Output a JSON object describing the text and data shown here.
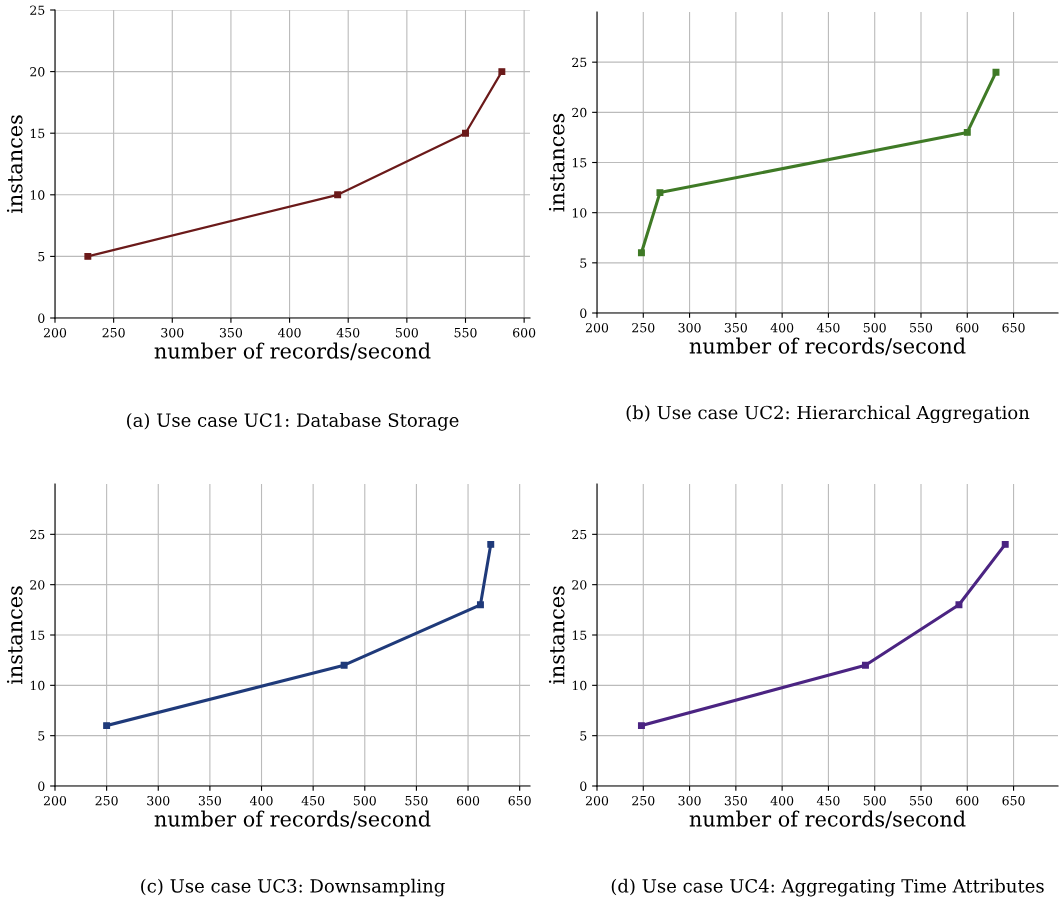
{
  "chart_data": [
    {
      "type": "line",
      "title": "(a) Use case UC1: Database Storage",
      "xlabel": "number of records/second",
      "ylabel": "instances",
      "x": [
        228,
        441,
        550,
        581
      ],
      "series": [
        {
          "color": "#6b1a1a",
          "values": [
            5,
            10,
            15,
            20
          ]
        }
      ],
      "xlim": [
        200,
        605
      ],
      "xticks": [
        200,
        250,
        300,
        350,
        400,
        450,
        500,
        550,
        600
      ],
      "ylim": [
        0,
        25
      ],
      "yticks": [
        0,
        5,
        10,
        15,
        20,
        25
      ],
      "grid": true,
      "marker": "square",
      "line_style": "solid",
      "legend": false
    },
    {
      "type": "line",
      "title": "(b) Use case UC2: Hierarchical Aggregation",
      "xlabel": "number of records/second",
      "ylabel": "instances",
      "x": [
        248,
        268,
        600,
        631
      ],
      "series": [
        {
          "color": "#3f7a26",
          "values": [
            6,
            12,
            18,
            24
          ]
        }
      ],
      "xlim": [
        200,
        698
      ],
      "xticks": [
        200,
        250,
        300,
        350,
        400,
        450,
        500,
        550,
        600,
        650
      ],
      "ylim": [
        0,
        30
      ],
      "yticks": [
        0,
        5,
        10,
        15,
        20,
        25
      ],
      "grid": true,
      "marker": "square",
      "line_style": "solid",
      "legend": false
    },
    {
      "type": "line",
      "title": "(c) Use case UC3: Downsampling",
      "xlabel": "number of records/second",
      "ylabel": "instances",
      "x": [
        250,
        480,
        612,
        622
      ],
      "series": [
        {
          "color": "#1f3a7a",
          "values": [
            6,
            12,
            18,
            24
          ]
        }
      ],
      "xlim": [
        200,
        660
      ],
      "xticks": [
        200,
        250,
        300,
        350,
        400,
        450,
        500,
        550,
        600,
        650
      ],
      "ylim": [
        0,
        30
      ],
      "yticks": [
        0,
        5,
        10,
        15,
        20,
        25
      ],
      "grid": true,
      "marker": "square",
      "line_style": "solid",
      "legend": false
    },
    {
      "type": "line",
      "title": "(d) Use case UC4: Aggregating Time Attributes",
      "xlabel": "number of records/second",
      "ylabel": "instances",
      "x": [
        248,
        490,
        591,
        641
      ],
      "series": [
        {
          "color": "#4b2482",
          "values": [
            6,
            12,
            18,
            24
          ]
        }
      ],
      "xlim": [
        200,
        698
      ],
      "xticks": [
        200,
        250,
        300,
        350,
        400,
        450,
        500,
        550,
        600,
        650
      ],
      "ylim": [
        0,
        30
      ],
      "yticks": [
        0,
        5,
        10,
        15,
        20,
        25
      ],
      "grid": true,
      "marker": "square",
      "line_style": "solid",
      "legend": false
    }
  ]
}
